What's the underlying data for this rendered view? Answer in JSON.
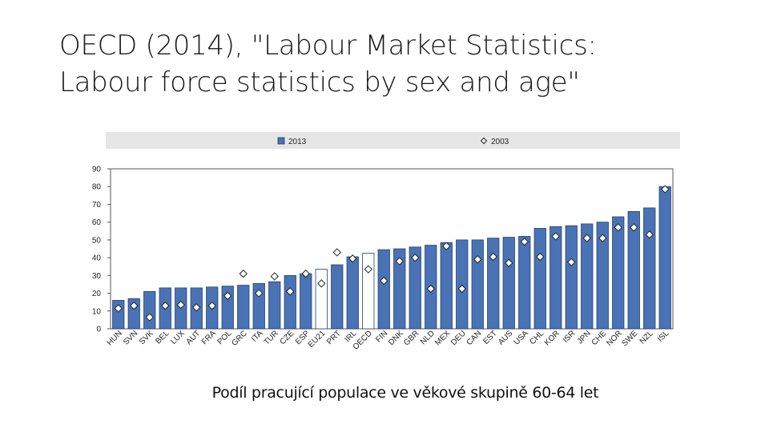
{
  "slide": {
    "title_line1": "OECD (2014), \"Labour Market Statistics:",
    "title_line2": "Labour force statistics by sex and age\"",
    "caption": "Podíl pracující populace ve věkové skupině 60-64 let"
  },
  "chart_data": {
    "type": "bar",
    "title": "",
    "xlabel": "",
    "ylabel": "",
    "ylim": [
      0,
      90
    ],
    "yticks": [
      0,
      10,
      20,
      30,
      40,
      50,
      60,
      70,
      80,
      90
    ],
    "grid": false,
    "legend_position": "top",
    "categories": [
      "HUN",
      "SVN",
      "SVK",
      "BEL",
      "LUX",
      "AUT",
      "FRA",
      "POL",
      "GRC",
      "ITA",
      "TUR",
      "CZE",
      "ESP",
      "EU21",
      "PRT",
      "IRL",
      "OECD",
      "FIN",
      "DNK",
      "GBR",
      "NLD",
      "MEX",
      "DEU",
      "CAN",
      "EST",
      "AUS",
      "USA",
      "CHL",
      "KOR",
      "ISR",
      "JPN",
      "CHE",
      "NOR",
      "SWE",
      "NZL",
      "ISL"
    ],
    "highlighted_categories": [
      "EU21",
      "OECD"
    ],
    "series": [
      {
        "name": "2013",
        "marker": "bar",
        "values": [
          16,
          17,
          21,
          23,
          23,
          23,
          23.5,
          24,
          24.5,
          25.5,
          26.5,
          30,
          31,
          33.5,
          36,
          40.5,
          42.5,
          44.5,
          45,
          46,
          47,
          48.5,
          50,
          50,
          51,
          51.5,
          52,
          56.5,
          57.5,
          58,
          59,
          60,
          63,
          66,
          68,
          80
        ]
      },
      {
        "name": "2003",
        "marker": "diamond",
        "values": [
          11.5,
          13,
          6.5,
          13,
          13.5,
          12,
          13,
          18.5,
          31,
          20,
          29.5,
          21,
          31,
          25.5,
          43,
          39.5,
          33.5,
          27,
          38,
          40,
          22.5,
          46.5,
          22.5,
          39,
          40.5,
          37,
          49,
          40.5,
          52,
          37.5,
          51,
          51,
          57,
          57,
          53,
          78.5
        ]
      }
    ],
    "colors": {
      "bar_fill": "#4a73b5",
      "bar_stroke": "#1f3f73",
      "highlight_fill": "#ffffff",
      "diamond_fill": "#ffffff",
      "diamond_stroke": "#222222",
      "legend_band": "#e6e6e6"
    }
  }
}
